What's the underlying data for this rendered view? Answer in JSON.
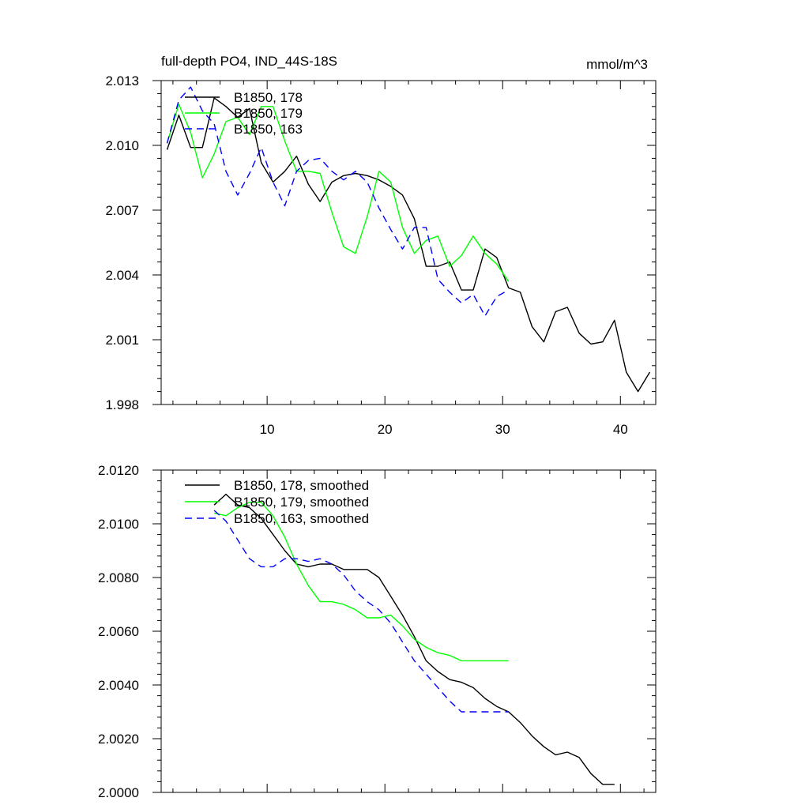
{
  "chart_data": [
    {
      "type": "line",
      "title": "full-depth PO4, IND_44S-18S",
      "units": "mmol/m^3",
      "xlim": [
        1,
        43
      ],
      "ylim": [
        1.998,
        2.013
      ],
      "xticks": [
        10,
        20,
        30,
        40
      ],
      "xtick_labels": [
        "10",
        "20",
        "30",
        "40"
      ],
      "yticks": [
        1.998,
        2.001,
        2.004,
        2.007,
        2.01,
        2.013
      ],
      "ytick_labels": [
        "1.998",
        "2.001",
        "2.004",
        "2.007",
        "2.010",
        "2.013"
      ],
      "grid": false,
      "legend_position": "top-left",
      "series": [
        {
          "name": "B1850, 178",
          "color": "#000000",
          "dash": "solid",
          "x": [
            1.5,
            2.5,
            3.5,
            4.5,
            5.5,
            6.5,
            7.5,
            8.5,
            9.5,
            10.5,
            11.5,
            12.5,
            13.5,
            14.5,
            15.5,
            16.5,
            17.5,
            18.5,
            19.5,
            20.5,
            21.5,
            22.5,
            23.5,
            24.5,
            25.5,
            26.5,
            27.5,
            28.5,
            29.5,
            30.5,
            31.5,
            32.5,
            33.5,
            34.5,
            35.5,
            36.5,
            37.5,
            38.5,
            39.5,
            40.5,
            41.5,
            42.5
          ],
          "y": [
            2.0098,
            2.0114,
            2.0099,
            2.0099,
            2.0122,
            2.0118,
            2.0113,
            2.0117,
            2.0092,
            2.0083,
            2.0088,
            2.0095,
            2.0082,
            2.0074,
            2.0083,
            2.0086,
            2.0087,
            2.0086,
            2.0084,
            2.0081,
            2.0077,
            2.0066,
            2.0044,
            2.0044,
            2.0046,
            2.0033,
            2.0033,
            2.0052,
            2.0048,
            2.0034,
            2.0032,
            2.0016,
            2.0009,
            2.0023,
            2.0025,
            2.0013,
            2.0008,
            2.0009,
            2.0019,
            1.9995,
            1.9986,
            1.9995
          ]
        },
        {
          "name": "B1850, 179",
          "color": "#00ff00",
          "dash": "solid",
          "x": [
            1.5,
            2.5,
            3.5,
            4.5,
            5.5,
            6.5,
            7.5,
            8.5,
            9.5,
            10.5,
            11.5,
            12.5,
            13.5,
            14.5,
            15.5,
            16.5,
            17.5,
            18.5,
            19.5,
            20.5,
            21.5,
            22.5,
            23.5,
            24.5,
            25.5,
            26.5,
            27.5,
            28.5,
            29.5,
            30.5
          ],
          "y": [
            2.0101,
            2.0119,
            2.0106,
            2.0085,
            2.0096,
            2.0111,
            2.0113,
            2.0105,
            2.0118,
            2.0118,
            2.0102,
            2.0088,
            2.0088,
            2.0087,
            2.0069,
            2.0053,
            2.005,
            2.0067,
            2.0088,
            2.0083,
            2.0062,
            2.005,
            2.0056,
            2.0058,
            2.0044,
            2.0049,
            2.0058,
            2.005,
            2.0045,
            2.0037
          ]
        },
        {
          "name": "B1850, 163",
          "color": "#0000ff",
          "dash": "dashed",
          "x": [
            1.5,
            2.5,
            3.5,
            4.5,
            5.5,
            6.5,
            7.5,
            8.5,
            9.5,
            10.5,
            11.5,
            12.5,
            13.5,
            14.5,
            15.5,
            16.5,
            17.5,
            18.5,
            19.5,
            20.5,
            21.5,
            22.5,
            23.5,
            24.5,
            25.5,
            26.5,
            27.5,
            28.5,
            29.5,
            30.5
          ],
          "y": [
            2.0101,
            2.0121,
            2.0127,
            2.0116,
            2.011,
            2.0088,
            2.0077,
            2.0087,
            2.0099,
            2.0083,
            2.0072,
            2.0088,
            2.0093,
            2.0094,
            2.0088,
            2.0084,
            2.0088,
            2.0083,
            2.0071,
            2.0061,
            2.0052,
            2.0062,
            2.0062,
            2.0038,
            2.0032,
            2.0027,
            2.0031,
            2.0021,
            2.003,
            2.0033
          ]
        }
      ]
    },
    {
      "type": "line",
      "title": "",
      "xlim": [
        1,
        43
      ],
      "ylim": [
        2.0,
        2.012
      ],
      "xticks": [
        10,
        20,
        30,
        40
      ],
      "xtick_labels": [],
      "yticks": [
        2.0,
        2.002,
        2.004,
        2.006,
        2.008,
        2.01,
        2.012
      ],
      "ytick_labels": [
        "2.0000",
        "2.0020",
        "2.0040",
        "2.0060",
        "2.0080",
        "2.0100",
        "2.0120"
      ],
      "grid": false,
      "legend_position": "top-left",
      "series": [
        {
          "name": "B1850, 178, smoothed",
          "color": "#000000",
          "dash": "solid",
          "x": [
            5.5,
            6.5,
            7.5,
            8.5,
            9.5,
            10.5,
            11.5,
            12.5,
            13.5,
            14.5,
            15.5,
            16.5,
            17.5,
            18.5,
            19.5,
            20.5,
            21.5,
            22.5,
            23.5,
            24.5,
            25.5,
            26.5,
            27.5,
            28.5,
            29.5,
            30.5,
            31.5,
            32.5,
            33.5,
            34.5,
            35.5,
            36.5,
            37.5,
            38.5,
            39.5
          ],
          "y": [
            2.0107,
            2.0111,
            2.0107,
            2.0106,
            2.0102,
            2.0096,
            2.009,
            2.0085,
            2.0084,
            2.0085,
            2.0085,
            2.0083,
            2.0083,
            2.0083,
            2.008,
            2.0073,
            2.0066,
            2.0058,
            2.0049,
            2.0045,
            2.0042,
            2.0041,
            2.0039,
            2.0035,
            2.0032,
            2.003,
            2.0026,
            2.0021,
            2.0017,
            2.0014,
            2.0015,
            2.0013,
            2.0007,
            2.0003,
            2.0003
          ]
        },
        {
          "name": "B1850, 179, smoothed",
          "color": "#00ff00",
          "dash": "solid",
          "x": [
            5.5,
            6.5,
            7.5,
            8.5,
            9.5,
            10.5,
            11.5,
            12.5,
            13.5,
            14.5,
            15.5,
            16.5,
            17.5,
            18.5,
            19.5,
            20.5,
            21.5,
            22.5,
            23.5,
            24.5,
            25.5,
            26.5,
            27.5,
            28.5,
            29.5,
            30.5
          ],
          "y": [
            2.0104,
            2.0103,
            2.0106,
            2.0108,
            2.0108,
            2.0103,
            2.0095,
            2.0085,
            2.0077,
            2.0071,
            2.0071,
            2.007,
            2.0068,
            2.0065,
            2.0065,
            2.0066,
            2.0062,
            2.0057,
            2.0054,
            2.0052,
            2.0051,
            2.0049,
            2.0049,
            2.0049,
            2.0049,
            2.0049
          ]
        },
        {
          "name": "B1850, 163, smoothed",
          "color": "#0000ff",
          "dash": "dashed",
          "x": [
            5.5,
            6.5,
            7.5,
            8.5,
            9.5,
            10.5,
            11.5,
            12.5,
            13.5,
            14.5,
            15.5,
            16.5,
            17.5,
            18.5,
            19.5,
            20.5,
            21.5,
            22.5,
            23.5,
            24.5,
            25.5,
            26.5,
            27.5,
            28.5,
            29.5,
            30.5
          ],
          "y": [
            2.0105,
            2.0101,
            2.0094,
            2.0087,
            2.0084,
            2.0084,
            2.0087,
            2.0087,
            2.0086,
            2.0087,
            2.0085,
            2.0081,
            2.0075,
            2.0071,
            2.0068,
            2.0063,
            2.0056,
            2.0049,
            2.0044,
            2.0039,
            2.0034,
            2.003,
            2.003,
            2.003,
            2.003,
            2.003
          ]
        }
      ]
    }
  ]
}
